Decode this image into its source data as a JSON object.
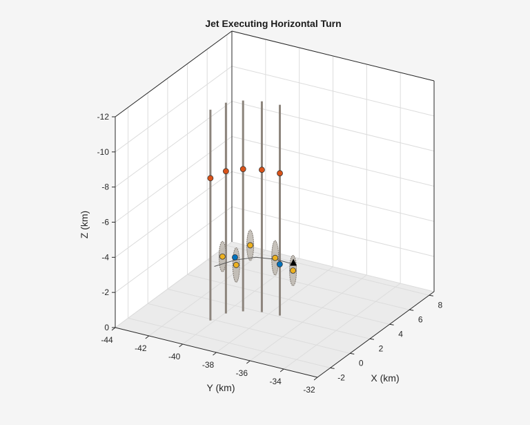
{
  "chart_data": {
    "type": "scatter3d",
    "title": "Jet Executing Horizontal Turn",
    "xlabel": "X (km)",
    "ylabel": "Y (km)",
    "zlabel": "Z (km)",
    "xlim": [
      -3.3,
      8.5
    ],
    "ylim": [
      -44,
      -32
    ],
    "zlim": [
      -12,
      0
    ],
    "z_direction": "reversed",
    "grid": true,
    "xticks": [
      -2,
      0,
      2,
      4,
      6,
      8
    ],
    "yticks": [
      -44,
      -42,
      -40,
      -38,
      -36,
      -34,
      -32
    ],
    "zticks": [
      0,
      -2,
      -4,
      -6,
      -8,
      -10,
      -12
    ],
    "colors": {
      "sensor": "#d95319",
      "detection": "#edb120",
      "track": "#0072bd",
      "truth": "#000000",
      "uncertainty": "#8c847c",
      "floor": "#ebebeb",
      "wall": "#ffffff"
    },
    "sensor_columns": {
      "z_extent": [
        0,
        -12
      ],
      "points": [
        {
          "x": -0.15,
          "y": -40.2,
          "z": -8.1
        },
        {
          "x": 0.96,
          "y": -39.93,
          "z": -8.1
        },
        {
          "x": 1.62,
          "y": -39.3,
          "z": -8.1
        },
        {
          "x": 2.02,
          "y": -38.42,
          "z": -8.1
        },
        {
          "x": 2.12,
          "y": -37.41,
          "z": -8.1
        }
      ]
    },
    "trajectory": [
      {
        "x": 0.09,
        "y": -40.11,
        "z": -3
      },
      {
        "x": 1.27,
        "y": -39.57,
        "z": -3
      },
      {
        "x": 2.08,
        "y": -38.83,
        "z": -3
      },
      {
        "x": 2.39,
        "y": -37.77,
        "z": -3
      },
      {
        "x": 2.32,
        "y": -36.71,
        "z": -3
      }
    ],
    "detections": [
      {
        "x": 1.31,
        "y": -40.34,
        "z": -3
      },
      {
        "x": 0.79,
        "y": -39.22,
        "z": -3
      },
      {
        "x": 3.18,
        "y": -39.79,
        "z": -3
      },
      {
        "x": 2.51,
        "y": -37.92,
        "z": -3
      },
      {
        "x": 1.66,
        "y": -36.36,
        "z": -3
      }
    ],
    "tracks": [
      {
        "x": 1.55,
        "y": -39.74,
        "z": -3
      },
      {
        "x": 1.97,
        "y": -37.33,
        "z": -3
      }
    ],
    "truth": {
      "x": 2.45,
      "y": -36.8,
      "z": -3
    }
  }
}
